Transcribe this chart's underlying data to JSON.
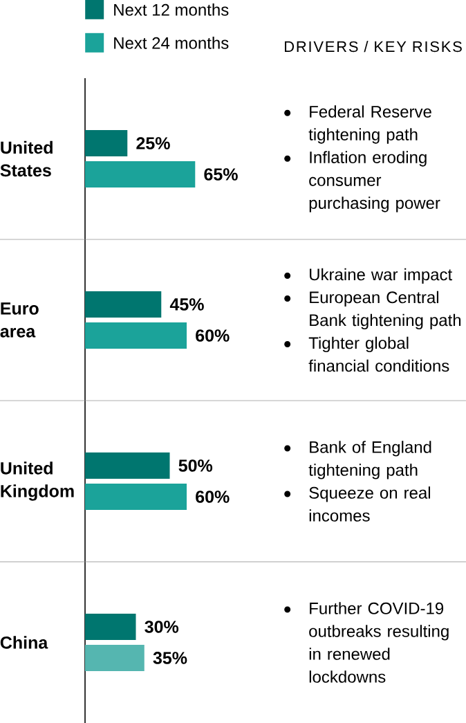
{
  "chart_data": {
    "type": "bar",
    "orientation": "horizontal",
    "categories": [
      "United States",
      "Euro area",
      "United Kingdom",
      "China"
    ],
    "series": [
      {
        "name": "Next 12 months",
        "color": "#00766f",
        "values": [
          25,
          45,
          50,
          30
        ],
        "value_labels": [
          "25%",
          "45%",
          "50%",
          "30%"
        ]
      },
      {
        "name": "Next 24 months",
        "color": "#1ba39a",
        "colors": [
          "#1ba39a",
          "#1ba39a",
          "#1ba39a",
          "#55b6b0"
        ],
        "values": [
          65,
          60,
          60,
          35
        ],
        "value_labels": [
          "65%",
          "60%",
          "60%",
          "35%"
        ]
      }
    ],
    "legend": "top",
    "grid": "y",
    "tick_labels": "y",
    "annotations": [
      "DRIVERS / KEY RISKS",
      "Federal Reserve tightening path",
      "Inflation eroding consumer purchasing power",
      "Ukraine war impact",
      "European Central Bank tightening path",
      "Tighter global financial conditions",
      "Bank of England tightening path",
      "Squeeze on real incomes",
      "Further COVID-19 outbreaks resulting in renewed lockdowns"
    ]
  }
}
